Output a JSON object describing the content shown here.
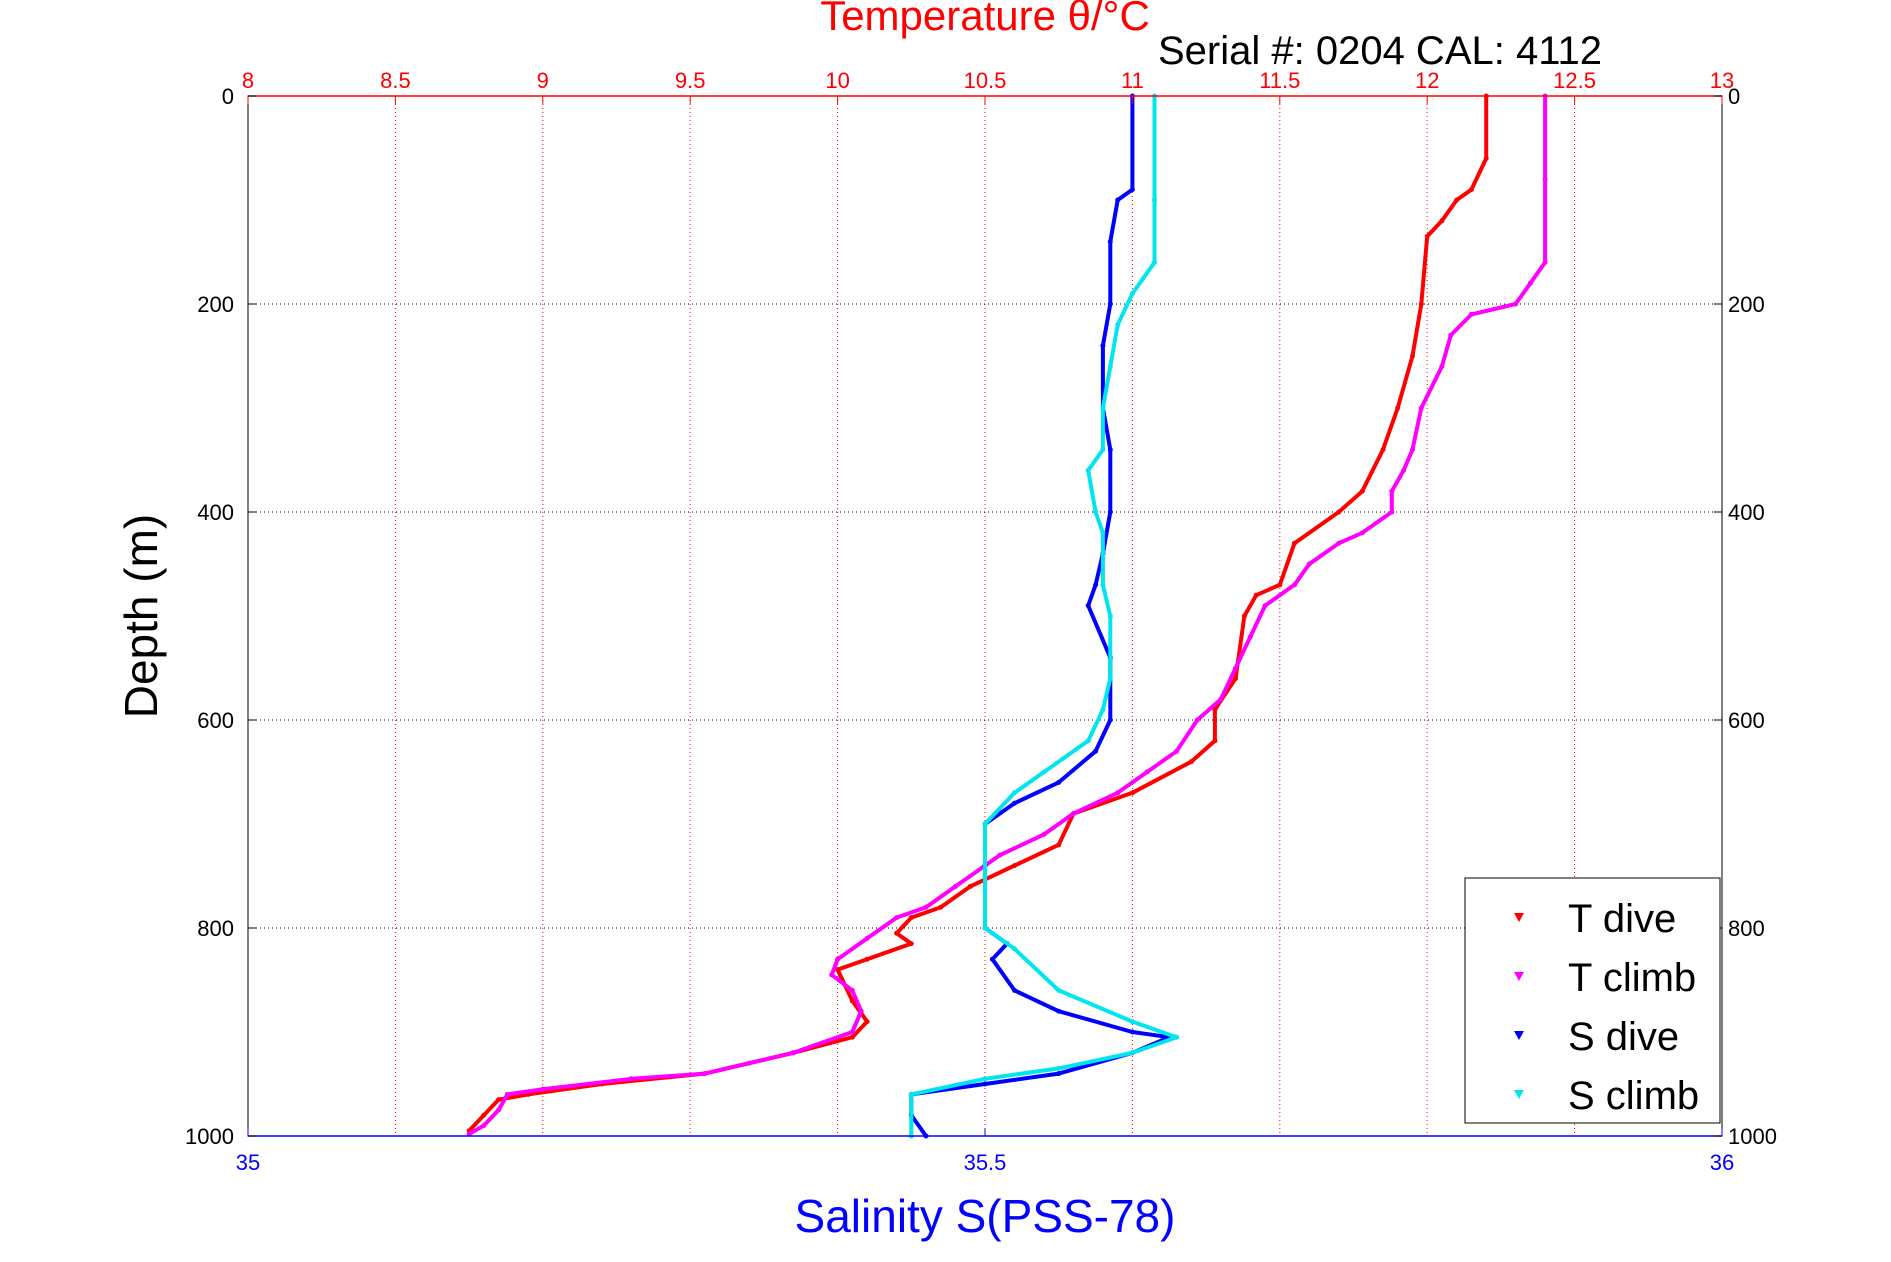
{
  "chart_data": {
    "type": "scatter",
    "title_top": "Temperature θ/°C",
    "subtitle": "Serial #: 0204  CAL: 4112",
    "xlabel_bottom": "Salinity S(PSS-78)",
    "ylabel": "Depth (m)",
    "x_top": {
      "min": 8,
      "max": 13,
      "ticks": [
        "8",
        "8.5",
        "9",
        "9.5",
        "10",
        "10.5",
        "11",
        "11.5",
        "12",
        "12.5",
        "13"
      ]
    },
    "x_bottom": {
      "min": 35,
      "max": 36,
      "ticks": [
        "35",
        "35.5",
        "36"
      ]
    },
    "y": {
      "min": 0,
      "max": 1000,
      "reversed": true,
      "ticks": [
        "0",
        "200",
        "400",
        "600",
        "800",
        "1000"
      ]
    },
    "grid": true,
    "legend_position": "bottom-right",
    "colors": {
      "T dive": "#ff0000",
      "T climb": "#ff00ff",
      "S dive": "#0000ff",
      "S climb": "#00e5ee",
      "top_axis": "#ff0000",
      "bottom_axis": "#0000ff"
    },
    "series": [
      {
        "name": "T dive",
        "axis": "temperature",
        "color": "#ff0000",
        "points": [
          [
            12.2,
            0
          ],
          [
            12.2,
            60
          ],
          [
            12.15,
            90
          ],
          [
            12.1,
            100
          ],
          [
            12.05,
            120
          ],
          [
            12.0,
            135
          ],
          [
            11.98,
            200
          ],
          [
            11.95,
            250
          ],
          [
            11.9,
            300
          ],
          [
            11.85,
            340
          ],
          [
            11.78,
            380
          ],
          [
            11.7,
            400
          ],
          [
            11.55,
            430
          ],
          [
            11.5,
            470
          ],
          [
            11.42,
            480
          ],
          [
            11.38,
            500
          ],
          [
            11.35,
            560
          ],
          [
            11.28,
            590
          ],
          [
            11.28,
            620
          ],
          [
            11.2,
            640
          ],
          [
            11.0,
            670
          ],
          [
            10.8,
            690
          ],
          [
            10.75,
            720
          ],
          [
            10.6,
            740
          ],
          [
            10.45,
            760
          ],
          [
            10.35,
            780
          ],
          [
            10.25,
            790
          ],
          [
            10.2,
            805
          ],
          [
            10.25,
            815
          ],
          [
            10.1,
            830
          ],
          [
            10.0,
            840
          ],
          [
            10.05,
            870
          ],
          [
            10.1,
            890
          ],
          [
            10.05,
            905
          ],
          [
            9.85,
            920
          ],
          [
            9.55,
            940
          ],
          [
            9.2,
            950
          ],
          [
            8.95,
            960
          ],
          [
            8.85,
            965
          ],
          [
            8.8,
            980
          ],
          [
            8.75,
            995
          ]
        ]
      },
      {
        "name": "T climb",
        "axis": "temperature",
        "color": "#ff00ff",
        "points": [
          [
            12.4,
            0
          ],
          [
            12.4,
            80
          ],
          [
            12.4,
            160
          ],
          [
            12.35,
            180
          ],
          [
            12.3,
            200
          ],
          [
            12.15,
            210
          ],
          [
            12.08,
            230
          ],
          [
            12.05,
            260
          ],
          [
            11.98,
            300
          ],
          [
            11.95,
            340
          ],
          [
            11.92,
            360
          ],
          [
            11.88,
            380
          ],
          [
            11.88,
            400
          ],
          [
            11.78,
            420
          ],
          [
            11.7,
            430
          ],
          [
            11.6,
            450
          ],
          [
            11.55,
            470
          ],
          [
            11.45,
            490
          ],
          [
            11.4,
            520
          ],
          [
            11.35,
            550
          ],
          [
            11.3,
            580
          ],
          [
            11.22,
            600
          ],
          [
            11.15,
            630
          ],
          [
            11.05,
            650
          ],
          [
            10.95,
            670
          ],
          [
            10.8,
            690
          ],
          [
            10.7,
            710
          ],
          [
            10.55,
            730
          ],
          [
            10.4,
            760
          ],
          [
            10.3,
            780
          ],
          [
            10.2,
            790
          ],
          [
            10.1,
            810
          ],
          [
            10.0,
            830
          ],
          [
            9.98,
            845
          ],
          [
            10.05,
            860
          ],
          [
            10.08,
            880
          ],
          [
            10.05,
            900
          ],
          [
            9.85,
            920
          ],
          [
            9.7,
            930
          ],
          [
            9.55,
            940
          ],
          [
            9.3,
            945
          ],
          [
            9.0,
            955
          ],
          [
            8.88,
            960
          ],
          [
            8.85,
            975
          ],
          [
            8.8,
            990
          ],
          [
            8.75,
            998
          ]
        ]
      },
      {
        "name": "S dive",
        "axis": "salinity",
        "color": "#0000ff",
        "points": [
          [
            35.6,
            0
          ],
          [
            35.6,
            90
          ],
          [
            35.59,
            100
          ],
          [
            35.585,
            140
          ],
          [
            35.585,
            200
          ],
          [
            35.58,
            240
          ],
          [
            35.58,
            300
          ],
          [
            35.585,
            340
          ],
          [
            35.585,
            400
          ],
          [
            35.58,
            440
          ],
          [
            35.575,
            470
          ],
          [
            35.57,
            490
          ],
          [
            35.585,
            540
          ],
          [
            35.585,
            600
          ],
          [
            35.575,
            630
          ],
          [
            35.55,
            660
          ],
          [
            35.52,
            680
          ],
          [
            35.5,
            700
          ],
          [
            35.5,
            740
          ],
          [
            35.5,
            800
          ],
          [
            35.515,
            815
          ],
          [
            35.505,
            830
          ],
          [
            35.52,
            860
          ],
          [
            35.55,
            880
          ],
          [
            35.6,
            900
          ],
          [
            35.625,
            905
          ],
          [
            35.6,
            920
          ],
          [
            35.55,
            940
          ],
          [
            35.5,
            950
          ],
          [
            35.45,
            960
          ],
          [
            35.45,
            980
          ],
          [
            35.46,
            1000
          ]
        ]
      },
      {
        "name": "S climb",
        "axis": "salinity",
        "color": "#00e5ee",
        "points": [
          [
            35.615,
            0
          ],
          [
            35.615,
            100
          ],
          [
            35.615,
            160
          ],
          [
            35.6,
            190
          ],
          [
            35.59,
            220
          ],
          [
            35.585,
            260
          ],
          [
            35.58,
            300
          ],
          [
            35.58,
            340
          ],
          [
            35.57,
            360
          ],
          [
            35.575,
            400
          ],
          [
            35.58,
            420
          ],
          [
            35.58,
            470
          ],
          [
            35.585,
            500
          ],
          [
            35.585,
            560
          ],
          [
            35.58,
            590
          ],
          [
            35.57,
            620
          ],
          [
            35.54,
            650
          ],
          [
            35.52,
            670
          ],
          [
            35.5,
            700
          ],
          [
            35.5,
            750
          ],
          [
            35.5,
            800
          ],
          [
            35.52,
            820
          ],
          [
            35.55,
            860
          ],
          [
            35.6,
            890
          ],
          [
            35.63,
            905
          ],
          [
            35.6,
            920
          ],
          [
            35.55,
            935
          ],
          [
            35.5,
            945
          ],
          [
            35.45,
            960
          ],
          [
            35.45,
            1000
          ]
        ]
      }
    ]
  }
}
